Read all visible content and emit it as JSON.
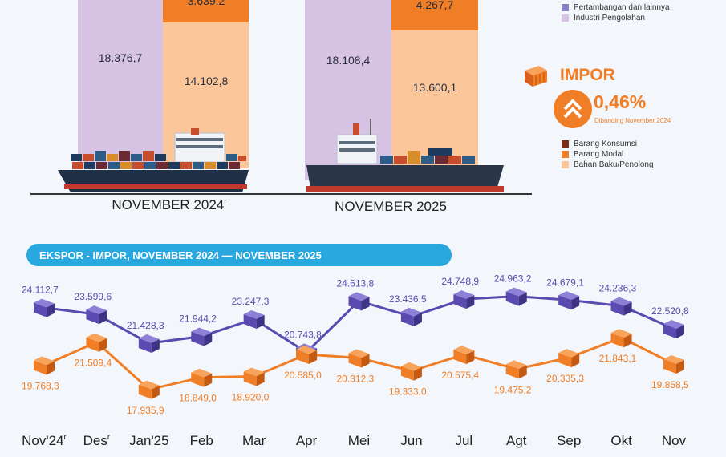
{
  "top": {
    "legend_ekspor": [
      {
        "label": "Pertambangan dan lainnya",
        "color": "#8e80c6"
      },
      {
        "label": "Industri Pengolahan",
        "color": "#d7c3e3"
      }
    ],
    "impor_title": "IMPOR",
    "impor_change": "0,46%",
    "impor_compare": "Dibanding November 2024",
    "legend_impor": [
      {
        "label": "Barang Konsumsi",
        "color": "#7a2e1a"
      },
      {
        "label": "Barang Modal",
        "color": "#f07e26"
      },
      {
        "label": "Bahan Baku/Penolong",
        "color": "#fbc69a"
      }
    ],
    "periods": [
      {
        "label": "NOVEMBER 2024",
        "superscript": "r",
        "ekspor_industri": "18.376,7",
        "impor_modal": "3.639,2",
        "impor_bahan_baku": "14.102,8"
      },
      {
        "label": "NOVEMBER 2025",
        "superscript": "",
        "ekspor_industri": "18.108,4",
        "impor_modal": "4.267,7",
        "impor_bahan_baku": "13.600,1"
      }
    ]
  },
  "section_title": "EKSPOR - IMPOR, NOVEMBER 2024 — NOVEMBER 2025",
  "chart_data": {
    "type": "line",
    "title": "EKSPOR - IMPOR, NOVEMBER 2024 — NOVEMBER 2025",
    "categories": [
      "Nov'24",
      "Des",
      "Jan'25",
      "Feb",
      "Mar",
      "Apr",
      "Mei",
      "Jun",
      "Jul",
      "Agt",
      "Sep",
      "Okt",
      "Nov"
    ],
    "category_superscripts": [
      "r",
      "r",
      "",
      "",
      "",
      "",
      "",
      "",
      "",
      "",
      "",
      "",
      ""
    ],
    "series": [
      {
        "name": "Ekspor",
        "color": "#5b4bb0",
        "values": [
          24112.7,
          23599.6,
          21428.3,
          21944.2,
          23247.3,
          20743.8,
          24613.8,
          23436.5,
          24748.9,
          24963.2,
          24679.1,
          24236.3,
          22520.8
        ],
        "labels": [
          "24.112,7",
          "23.599,6",
          "21.428,3",
          "21.944,2",
          "23.247,3",
          "20.743,8",
          "24.613,8",
          "23.436,5",
          "24.748,9",
          "24.963,2",
          "24.679,1",
          "24.236,3",
          "22.520,8"
        ]
      },
      {
        "name": "Impor",
        "color": "#f07e26",
        "values": [
          19768.3,
          21509.4,
          17935.9,
          18849.0,
          18920.0,
          20585.0,
          20312.3,
          19333.0,
          20575.4,
          19475.2,
          20335.3,
          21843.1,
          19858.5
        ],
        "labels": [
          "19.768,3",
          "21.509,4",
          "17.935,9",
          "18.849,0",
          "18.920,0",
          "20.585,0",
          "20.312,3",
          "19.333,0",
          "20.575,4",
          "19.475,2",
          "20.335,3",
          "21.843,1",
          "19.858,5"
        ]
      }
    ]
  }
}
